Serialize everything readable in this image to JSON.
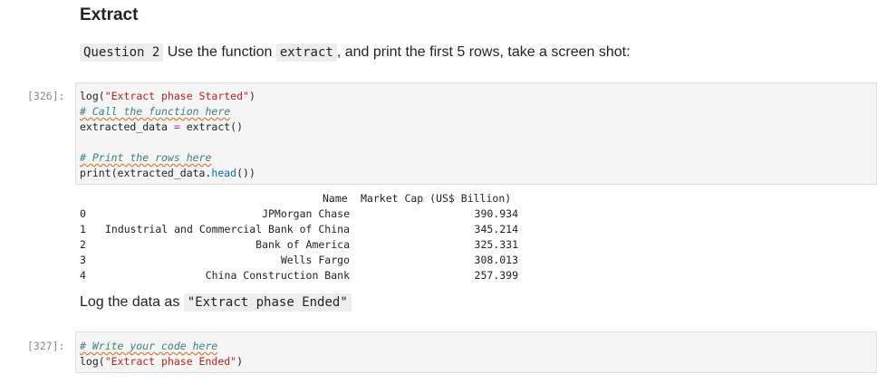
{
  "heading": "Extract",
  "question": {
    "label": "Question 2",
    "text_before": "Use the function",
    "function_name": "extract",
    "text_after": ", and print the first 5 rows, take a screen shot:"
  },
  "cell1": {
    "prompt": "[326]:",
    "lines": {
      "l1_fn": "log(",
      "l1_str": "\"Extract phase Started\"",
      "l1_end": ")",
      "l2": "# Call the function here",
      "l3_a": "extracted_data ",
      "l3_eq": "=",
      "l3_b": " extract()",
      "l5": "# Print the rows here",
      "l6_a": "print(extracted_data.",
      "l6_fn": "head",
      "l6_b": "())"
    }
  },
  "output": {
    "header_name": "Name",
    "header_cap": "Market Cap (US$ Billion)",
    "rows": [
      {
        "idx": "0",
        "name": "JPMorgan Chase",
        "cap": "390.934"
      },
      {
        "idx": "1",
        "name": "Industrial and Commercial Bank of China",
        "cap": "345.214"
      },
      {
        "idx": "2",
        "name": "Bank of America",
        "cap": "325.331"
      },
      {
        "idx": "3",
        "name": "Wells Fargo",
        "cap": "308.013"
      },
      {
        "idx": "4",
        "name": "China Construction Bank",
        "cap": "257.399"
      }
    ]
  },
  "log_note": {
    "text": "Log the data as",
    "code": "\"Extract phase Ended\""
  },
  "cell2": {
    "prompt": "[327]:",
    "l1": "# Write your code here",
    "l2_fn": "log(",
    "l2_str": "\"Extract phase Ended\"",
    "l2_end": ")"
  }
}
